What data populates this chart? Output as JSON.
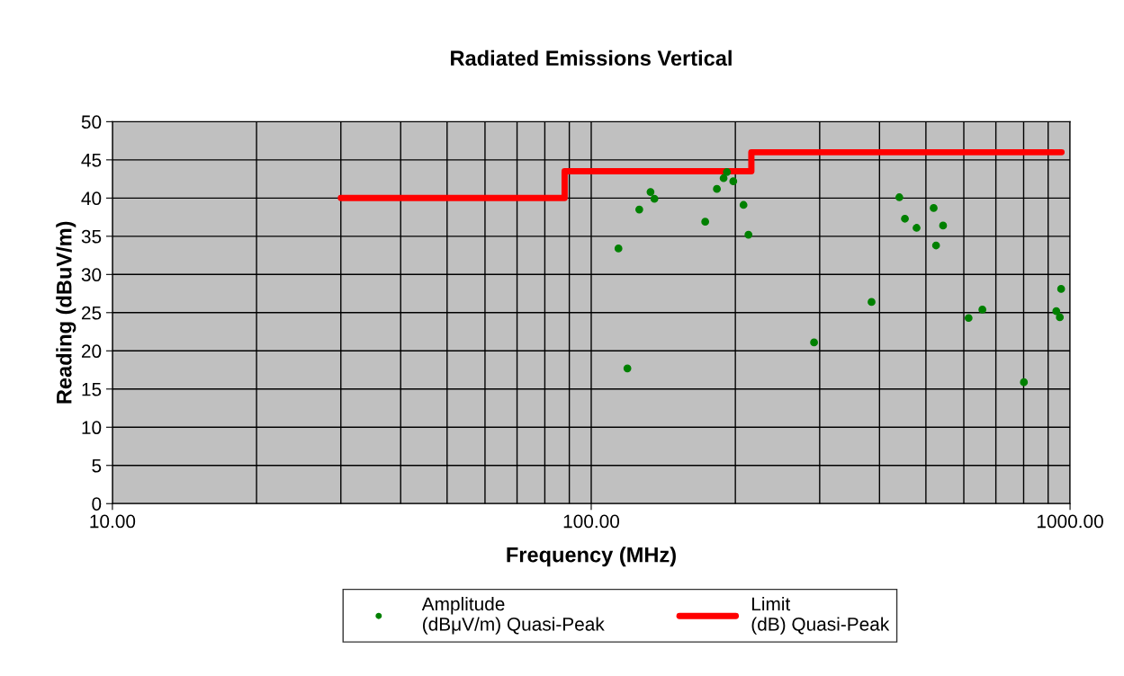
{
  "chart_data": {
    "type": "scatter",
    "title": "Radiated Emissions Vertical",
    "xlabel": "Frequency (MHz)",
    "ylabel": "Reading (dBuV/m)",
    "log": "x",
    "xlim": [
      10,
      1000
    ],
    "xticks": [
      {
        "value": 10,
        "label": "10.00"
      },
      {
        "value": 100,
        "label": "100.00"
      },
      {
        "value": 1000,
        "label": "1000.00"
      }
    ],
    "ylim": [
      0,
      50
    ],
    "yticks": [
      0,
      5,
      10,
      15,
      20,
      25,
      30,
      35,
      40,
      45,
      50
    ],
    "grid": true,
    "legend": "bottom",
    "marker": "circle",
    "series": [
      {
        "name": "Amplitude\n(dBμV/m) Quasi-Peak",
        "color": "#008000",
        "x": [
          114,
          119,
          126,
          133,
          135.5,
          173,
          183,
          189,
          192,
          198,
          208,
          213,
          292,
          385,
          440,
          452,
          478,
          519,
          543,
          525,
          614,
          656,
          801,
          936,
          952,
          958
        ],
        "values": [
          33.4,
          17.7,
          38.5,
          40.8,
          39.9,
          36.9,
          41.2,
          42.6,
          43.4,
          42.2,
          39.1,
          35.2,
          21.1,
          26.4,
          40.1,
          37.3,
          36.1,
          38.7,
          36.4,
          33.8,
          24.3,
          25.4,
          15.9,
          25.2,
          24.4,
          28.1
        ]
      },
      {
        "name": "Limit\n(dB) Quasi-Peak",
        "type": "line",
        "color": "#ff0000",
        "marker": "none",
        "line_style": "solid",
        "x": [
          30,
          88,
          88,
          216,
          216,
          960
        ],
        "values": [
          40,
          40,
          43.5,
          43.5,
          46,
          46
        ]
      }
    ]
  }
}
